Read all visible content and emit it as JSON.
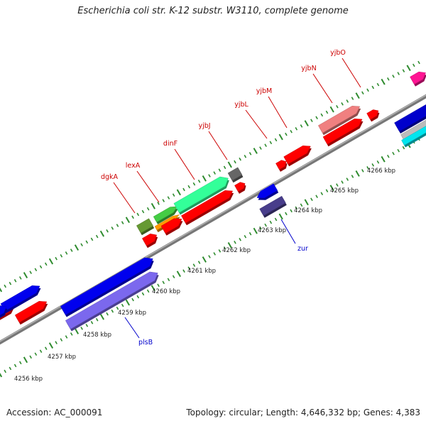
{
  "title": "Escherichia coli str. K-12 substr. W3110, complete genome",
  "accession": "Accession: AC_000091",
  "topology": "Topology: circular; Length: 4,646,332 bp; Genes: 4,383",
  "colors": {
    "backbone": "#888888",
    "tick": "#2e8b2e",
    "label_above": "#cc0000",
    "label_below": "#0000cc"
  },
  "scale_labels": [
    "4256 kbp",
    "4257 kbp",
    "4258 kbp",
    "4259 kbp",
    "4260 kbp",
    "4261 kbp",
    "4262 kbp",
    "4263 kbp",
    "4264 kbp",
    "4265 kbp",
    "4266 kbp"
  ],
  "gene_labels_above": [
    "dgkA",
    "lexA",
    "dinF",
    "yjbJ",
    "yjbL",
    "yjbM",
    "yjbN",
    "yjbO"
  ],
  "gene_labels_below": [
    "plsB",
    "zur"
  ]
}
